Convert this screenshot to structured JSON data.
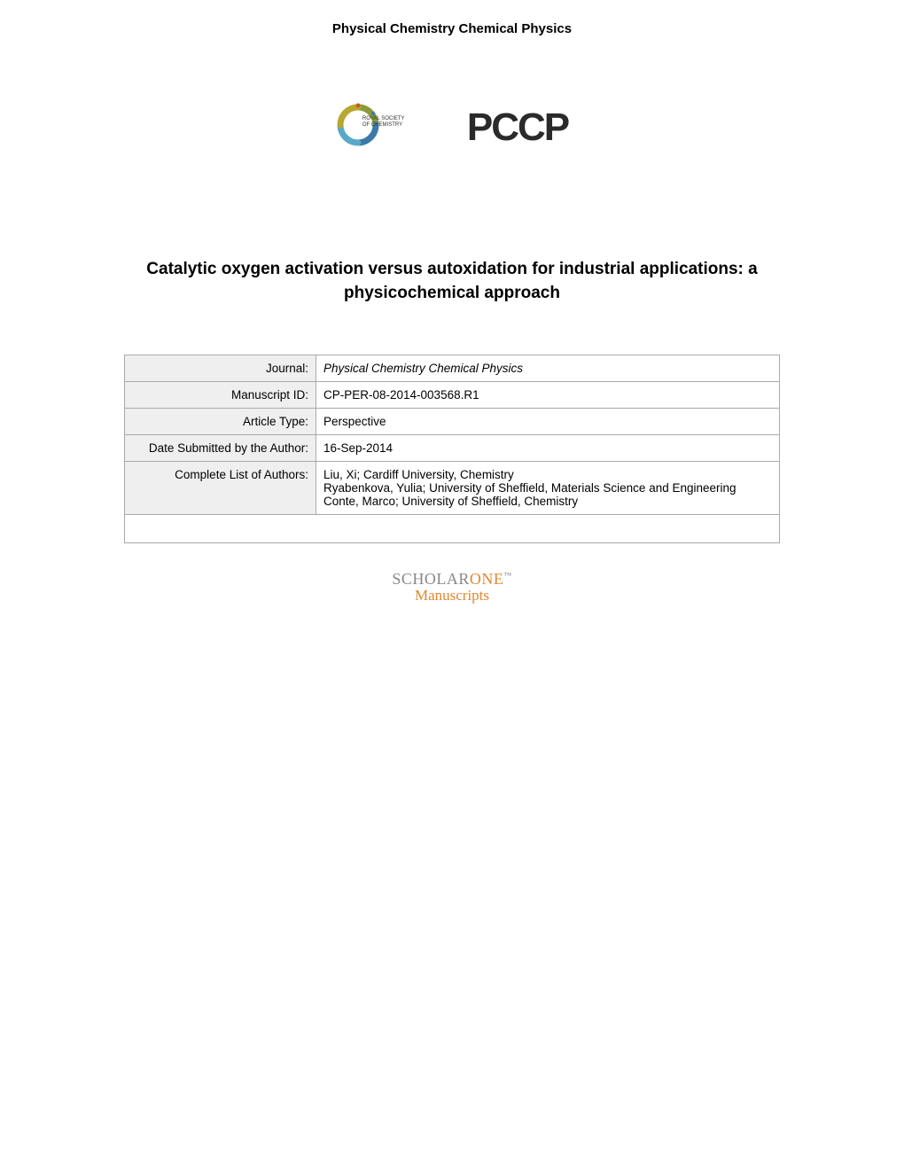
{
  "header": {
    "journal_name": "Physical Chemistry Chemical Physics"
  },
  "logos": {
    "rsc_text_line1": "ROYAL SOCIETY",
    "rsc_text_line2": "OF CHEMISTRY",
    "pccp_text": "PCCP"
  },
  "article": {
    "title": "Catalytic oxygen activation versus autoxidation for industrial applications: a physicochemical approach"
  },
  "metadata": {
    "rows": [
      {
        "label": "Journal:",
        "value": "Physical Chemistry Chemical Physics",
        "italic": true
      },
      {
        "label": "Manuscript ID:",
        "value": "CP-PER-08-2014-003568.R1",
        "italic": false
      },
      {
        "label": "Article Type:",
        "value": "Perspective",
        "italic": false
      },
      {
        "label": "Date Submitted by the Author:",
        "value": "16-Sep-2014",
        "italic": false
      },
      {
        "label": "Complete List of Authors:",
        "value": "Liu, Xi; Cardiff University, Chemistry\nRyabenkova, Yulia; University of Sheffield, Materials Science and Engineering\nConte, Marco; University of Sheffield, Chemistry",
        "italic": false
      }
    ]
  },
  "footer": {
    "scholarone_prefix": "SCHOLAR",
    "scholarone_suffix": "ONE",
    "scholarone_tm": "™",
    "scholarone_sub": "Manuscripts"
  },
  "colors": {
    "text": "#000000",
    "border": "#aaaaaa",
    "label_bg": "#efefef",
    "value_bg": "#ffffff",
    "scholarone_gray": "#888888",
    "scholarone_orange": "#e08830",
    "pccp_dark": "#2a2a2a"
  }
}
